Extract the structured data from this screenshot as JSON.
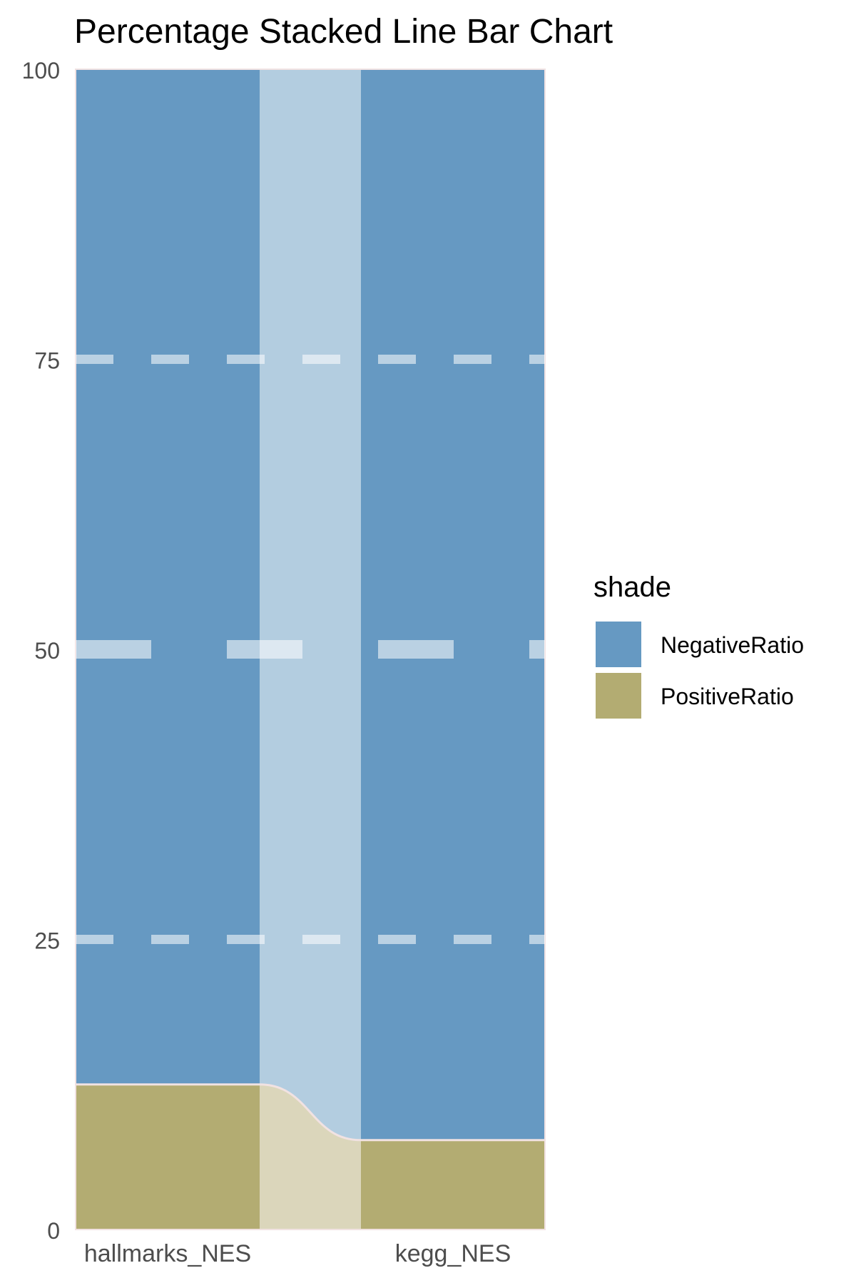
{
  "chart_data": {
    "type": "bar",
    "subtype": "percentage-stacked-bar-with-connecting-area",
    "title": "Percentage Stacked Line Bar Chart",
    "xlabel": "",
    "ylabel": "",
    "categories": [
      "hallmarks_NES",
      "kegg_NES"
    ],
    "ylim": [
      0,
      100
    ],
    "yticks": [
      "0",
      "25",
      "50",
      "75",
      "100"
    ],
    "series": [
      {
        "name": "PositiveRatio",
        "values": [
          12.5,
          7.7
        ],
        "color": "#b3ac72",
        "link_color": "#dbd6bb"
      },
      {
        "name": "NegativeRatio",
        "values": [
          87.5,
          92.3
        ],
        "color": "#6699c2",
        "link_color": "#b3cde0"
      }
    ],
    "grid": "dashed-horizontal",
    "legend": {
      "title": "shade",
      "placement": "right",
      "entries": [
        "NegativeRatio",
        "PositiveRatio"
      ]
    },
    "divider_color": "#f1e2e2"
  }
}
